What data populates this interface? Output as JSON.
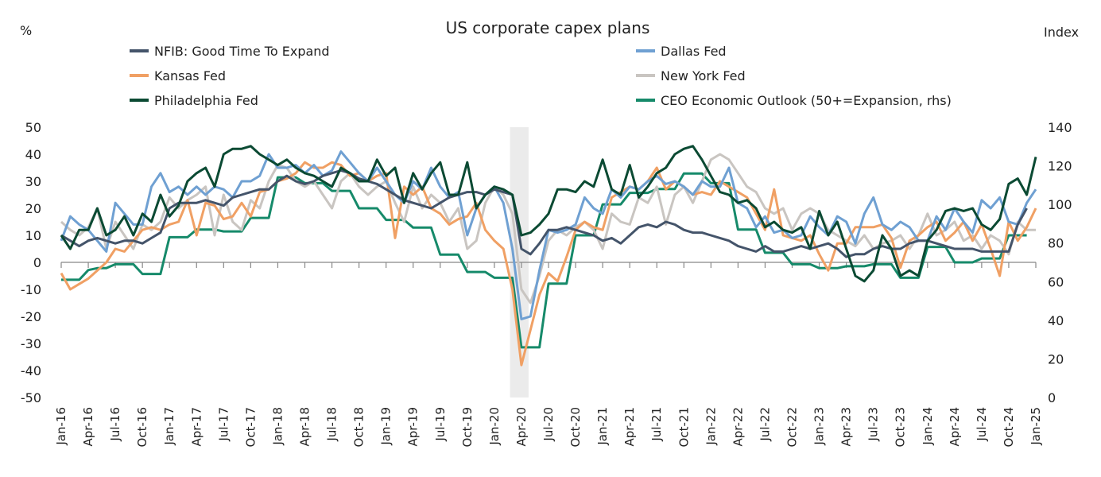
{
  "chart_data": {
    "type": "line",
    "title": "US corporate capex plans",
    "ylabel_left": "%",
    "ylabel_right": "Index",
    "ylim_left": [
      -50,
      50
    ],
    "ylim_right": [
      0,
      140
    ],
    "yticks_left": [
      "50",
      "40",
      "30",
      "20",
      "10",
      "0",
      "-10",
      "-20",
      "-30",
      "-40",
      "-50"
    ],
    "yticks_right": [
      "140",
      "120",
      "100",
      "80",
      "60",
      "40",
      "20",
      "0"
    ],
    "x_start": "Jan-16",
    "x_end": "Jan-25",
    "frequency": "monthly",
    "xtick_labels": [
      "Jan-16",
      "Apr-16",
      "Jul-16",
      "Oct-16",
      "Jan-17",
      "Apr-17",
      "Jul-17",
      "Oct-17",
      "Jan-18",
      "Apr-18",
      "Jul-18",
      "Oct-18",
      "Jan-19",
      "Apr-19",
      "Jul-19",
      "Oct-19",
      "Jan-20",
      "Apr-20",
      "Jul-20",
      "Oct-20",
      "Jan-21",
      "Apr-21",
      "Jul-21",
      "Oct-21",
      "Jan-22",
      "Apr-22",
      "Jul-22",
      "Oct-22",
      "Jan-23",
      "Apr-23",
      "Jul-23",
      "Oct-23",
      "Jan-24",
      "Apr-24",
      "Jul-24",
      "Oct-24",
      "Jan-25"
    ],
    "shaded_period": [
      "Mar-20",
      "Apr-20"
    ],
    "grid": false,
    "legend_placement": "top",
    "series": [
      {
        "name": "NFIB: Good Time To Expand",
        "axis": "left",
        "color": "#44546a",
        "values": [
          10,
          8,
          6,
          8,
          9,
          8,
          7,
          8,
          8,
          7,
          9,
          11,
          20,
          22,
          22,
          22,
          23,
          22,
          21,
          24,
          25,
          26,
          27,
          27,
          30,
          32,
          30,
          29,
          30,
          32,
          33,
          34,
          33,
          31,
          30,
          29,
          27,
          25,
          23,
          22,
          21,
          20,
          22,
          24,
          25,
          26,
          26,
          25,
          27,
          26,
          25,
          5,
          3,
          7,
          12,
          12,
          13,
          12,
          11,
          10,
          8,
          9,
          7,
          10,
          13,
          14,
          13,
          15,
          14,
          12,
          11,
          11,
          10,
          9,
          8,
          6,
          5,
          4,
          6,
          4,
          4,
          5,
          6,
          5,
          6,
          7,
          5,
          2,
          3,
          3,
          5,
          6,
          5,
          5,
          7,
          8,
          8,
          7,
          6,
          5,
          5,
          5,
          4,
          4,
          4,
          4,
          14,
          20,
          null
        ]
      },
      {
        "name": "Dallas Fed",
        "axis": "left",
        "color": "#6fa0d2",
        "values": [
          8,
          17,
          14,
          12,
          8,
          4,
          22,
          18,
          14,
          14,
          28,
          33,
          26,
          28,
          25,
          28,
          25,
          28,
          27,
          24,
          30,
          30,
          32,
          40,
          35,
          35,
          36,
          33,
          36,
          32,
          34,
          41,
          37,
          33,
          30,
          35,
          30,
          25,
          22,
          30,
          27,
          35,
          28,
          24,
          26,
          10,
          20,
          25,
          28,
          22,
          5,
          -21,
          -20,
          -3,
          12,
          11,
          12,
          14,
          24,
          20,
          18,
          27,
          24,
          28,
          27,
          30,
          32,
          29,
          30,
          28,
          25,
          30,
          28,
          28,
          35,
          22,
          20,
          13,
          17,
          11,
          12,
          9,
          10,
          17,
          13,
          10,
          17,
          15,
          7,
          18,
          24,
          14,
          12,
          15,
          13,
          8,
          8,
          17,
          12,
          20,
          15,
          11,
          23,
          20,
          24,
          15,
          14,
          22,
          27
        ]
      },
      {
        "name": "Kansas Fed",
        "axis": "left",
        "color": "#f0a064",
        "values": [
          -4,
          -10,
          -8,
          -6,
          -3,
          0,
          5,
          4,
          8,
          12,
          13,
          12,
          14,
          15,
          23,
          10,
          22,
          21,
          16,
          17,
          22,
          17,
          26,
          27,
          30,
          31,
          33,
          37,
          35,
          35,
          37,
          36,
          32,
          33,
          30,
          32,
          33,
          9,
          28,
          25,
          28,
          20,
          18,
          14,
          16,
          17,
          22,
          12,
          8,
          5,
          -10,
          -38,
          -25,
          -12,
          -4,
          -7,
          2,
          12,
          15,
          13,
          12,
          24,
          26,
          28,
          27,
          30,
          35,
          27,
          30,
          28,
          25,
          26,
          25,
          30,
          28,
          26,
          24,
          18,
          12,
          27,
          10,
          9,
          8,
          10,
          3,
          -3,
          7,
          7,
          13,
          13,
          13,
          14,
          9,
          -2,
          8,
          10,
          13,
          15,
          8,
          11,
          15,
          8,
          14,
          5,
          -5,
          15,
          8,
          13,
          20
        ]
      },
      {
        "name": "New York Fed",
        "axis": "left",
        "color": "#c9c5c1",
        "values": [
          15,
          12,
          10,
          13,
          20,
          5,
          15,
          10,
          5,
          14,
          12,
          15,
          24,
          20,
          23,
          25,
          28,
          10,
          25,
          15,
          12,
          23,
          20,
          30,
          36,
          35,
          30,
          28,
          30,
          25,
          20,
          30,
          33,
          28,
          25,
          28,
          30,
          22,
          15,
          28,
          20,
          25,
          22,
          15,
          20,
          5,
          8,
          22,
          28,
          25,
          18,
          -10,
          -15,
          -5,
          8,
          12,
          10,
          13,
          15,
          12,
          5,
          18,
          15,
          14,
          24,
          22,
          28,
          14,
          25,
          28,
          22,
          30,
          38,
          40,
          38,
          33,
          28,
          26,
          20,
          18,
          20,
          12,
          18,
          20,
          18,
          12,
          10,
          8,
          6,
          10,
          5,
          7,
          8,
          10,
          5,
          10,
          18,
          10,
          12,
          15,
          8,
          10,
          5,
          10,
          8,
          3,
          15,
          12,
          12
        ]
      },
      {
        "name": "Philadelphia Fed",
        "axis": "left",
        "color": "#0b4a33",
        "values": [
          10,
          5,
          12,
          12,
          20,
          10,
          12,
          17,
          10,
          18,
          15,
          25,
          17,
          21,
          30,
          33,
          35,
          28,
          40,
          42,
          42,
          43,
          40,
          38,
          36,
          38,
          35,
          33,
          32,
          30,
          28,
          35,
          33,
          30,
          30,
          38,
          32,
          35,
          22,
          33,
          27,
          33,
          37,
          25,
          25,
          37,
          20,
          25,
          28,
          27,
          25,
          10,
          11,
          14,
          18,
          27,
          27,
          26,
          30,
          28,
          38,
          27,
          25,
          36,
          24,
          28,
          33,
          35,
          40,
          42,
          43,
          38,
          32,
          26,
          25,
          22,
          23,
          20,
          13,
          15,
          12,
          11,
          13,
          5,
          19,
          10,
          15,
          5,
          -5,
          -7,
          -3,
          10,
          5,
          -5,
          -3,
          -5,
          8,
          12,
          19,
          20,
          19,
          20,
          14,
          12,
          16,
          29,
          31,
          25,
          39
        ]
      },
      {
        "name": "CEO Economic Outlook (50+=Expansion, rhs)",
        "axis": "right",
        "color": "#168a6a",
        "values": [
          61,
          61,
          61,
          66,
          67,
          67,
          69,
          69,
          69,
          64,
          64,
          64,
          83,
          83,
          83,
          87,
          87,
          87,
          86,
          86,
          86,
          93,
          93,
          93,
          114,
          114,
          114,
          111,
          111,
          111,
          107,
          107,
          107,
          98,
          98,
          98,
          92,
          92,
          92,
          88,
          88,
          88,
          74,
          74,
          74,
          65,
          65,
          65,
          62,
          62,
          62,
          26,
          26,
          26,
          59,
          59,
          59,
          84,
          84,
          84,
          100,
          100,
          100,
          106,
          106,
          106,
          108,
          108,
          108,
          116,
          116,
          116,
          111,
          111,
          111,
          87,
          87,
          87,
          75,
          75,
          75,
          69,
          69,
          69,
          67,
          67,
          67,
          68,
          68,
          68,
          69,
          69,
          69,
          62,
          62,
          62,
          78,
          78,
          78,
          70,
          70,
          70,
          72,
          72,
          72,
          84,
          84,
          84,
          null
        ]
      }
    ]
  }
}
